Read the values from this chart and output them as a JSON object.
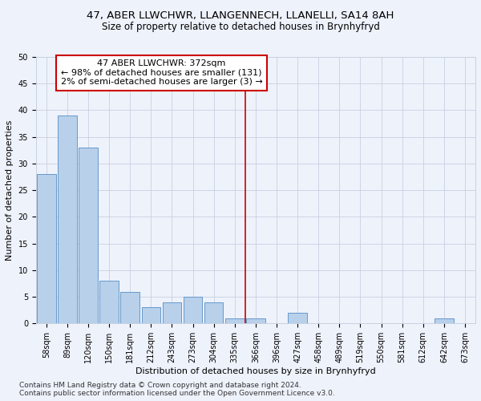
{
  "title": "47, ABER LLWCHWR, LLANGENNECH, LLANELLI, SA14 8AH",
  "subtitle": "Size of property relative to detached houses in Brynhyfryd",
  "xlabel": "Distribution of detached houses by size in Brynhyfryd",
  "ylabel": "Number of detached properties",
  "categories": [
    "58sqm",
    "89sqm",
    "120sqm",
    "150sqm",
    "181sqm",
    "212sqm",
    "243sqm",
    "273sqm",
    "304sqm",
    "335sqm",
    "366sqm",
    "396sqm",
    "427sqm",
    "458sqm",
    "489sqm",
    "519sqm",
    "550sqm",
    "581sqm",
    "612sqm",
    "642sqm",
    "673sqm"
  ],
  "values": [
    28,
    39,
    33,
    8,
    6,
    3,
    4,
    5,
    4,
    1,
    1,
    0,
    2,
    0,
    0,
    0,
    0,
    0,
    0,
    1,
    0
  ],
  "bar_color": "#b8d0ea",
  "bar_edge_color": "#6699cc",
  "vline_x": 9.5,
  "annotation_text_line1": "47 ABER LLWCHWR: 372sqm",
  "annotation_text_line2": "← 98% of detached houses are smaller (131)",
  "annotation_text_line3": "2% of semi-detached houses are larger (3) →",
  "annotation_box_color": "#ffffff",
  "annotation_box_edge_color": "#cc0000",
  "vline_color": "#cc0000",
  "ylim": [
    0,
    50
  ],
  "yticks": [
    0,
    5,
    10,
    15,
    20,
    25,
    30,
    35,
    40,
    45,
    50
  ],
  "footer_text": "Contains HM Land Registry data © Crown copyright and database right 2024.\nContains public sector information licensed under the Open Government Licence v3.0.",
  "bg_color": "#eef2fb",
  "grid_color": "#c8d0e0",
  "title_fontsize": 9.5,
  "subtitle_fontsize": 8.5,
  "axis_label_fontsize": 8,
  "tick_fontsize": 7,
  "annotation_fontsize": 8,
  "footer_fontsize": 6.5
}
